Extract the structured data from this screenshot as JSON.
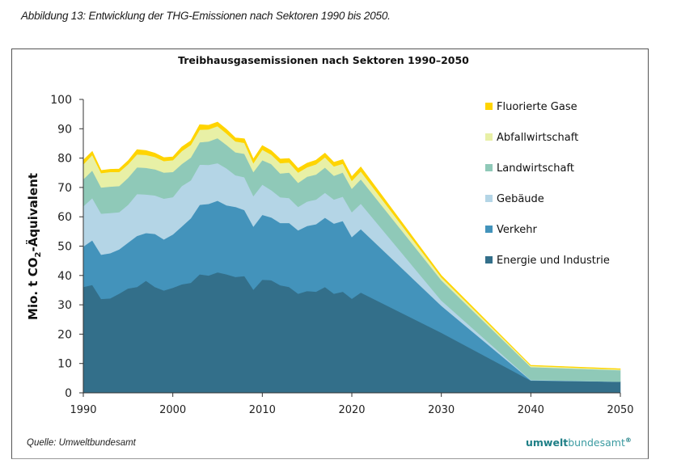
{
  "caption": "Abbildung 13:   Entwicklung der THG-Emissionen nach Sektoren 1990 bis 2050.",
  "source": "Quelle: Umweltbundesamt",
  "logo": {
    "bold": "umwelt",
    "light": "bundesamt",
    "mark": "®"
  },
  "chart_data": {
    "type": "area",
    "stacked": true,
    "title": "Treibhausgasemissionen nach Sektoren 1990–2050",
    "xlabel": "",
    "ylabel_parts": {
      "pre": "Mio. t CO",
      "sub": "2",
      "post": "-Äquivalent"
    },
    "ylim": [
      0,
      100
    ],
    "xlim": [
      1990,
      2050
    ],
    "yticks": [
      0,
      10,
      20,
      30,
      40,
      50,
      60,
      70,
      80,
      90,
      100
    ],
    "xticks": [
      1990,
      2000,
      2010,
      2020,
      2030,
      2040,
      2050
    ],
    "legend_position": "right",
    "x": [
      1990,
      1991,
      1992,
      1993,
      1994,
      1995,
      1996,
      1997,
      1998,
      1999,
      2000,
      2001,
      2002,
      2003,
      2004,
      2005,
      2006,
      2007,
      2008,
      2009,
      2010,
      2011,
      2012,
      2013,
      2014,
      2015,
      2016,
      2017,
      2018,
      2019,
      2020,
      2021,
      2030,
      2040,
      2050
    ],
    "series": [
      {
        "name": "Energie und Industrie",
        "color": "#336f8a",
        "values": [
          36.1,
          36.8,
          32.0,
          32.2,
          33.8,
          35.6,
          36.1,
          38.2,
          36.1,
          34.9,
          35.8,
          37.0,
          37.5,
          40.4,
          40.0,
          41.1,
          40.4,
          39.5,
          39.8,
          35.2,
          38.6,
          38.4,
          36.7,
          36.1,
          33.8,
          34.7,
          34.5,
          36.1,
          33.8,
          34.5,
          32.1,
          34.2,
          20.5,
          4.2,
          3.8
        ]
      },
      {
        "name": "Verkehr",
        "color": "#4393bb",
        "values": [
          13.8,
          15.2,
          15.1,
          15.4,
          15.1,
          15.6,
          17.4,
          16.3,
          18.1,
          17.4,
          18.2,
          19.7,
          22.0,
          23.7,
          24.4,
          24.4,
          23.5,
          23.9,
          22.5,
          21.5,
          22.1,
          21.4,
          21.2,
          21.8,
          21.6,
          22.2,
          23.0,
          23.6,
          23.9,
          24.1,
          21.0,
          21.6,
          9.2,
          0.1,
          0.0
        ]
      },
      {
        "name": "Gebäude",
        "color": "#b4d5e6",
        "values": [
          13.7,
          14.4,
          14.0,
          13.7,
          12.7,
          12.9,
          14.3,
          13.1,
          13.1,
          13.9,
          12.7,
          13.8,
          12.9,
          13.7,
          13.3,
          12.8,
          12.6,
          10.8,
          11.2,
          10.4,
          10.3,
          9.3,
          8.8,
          8.5,
          8.0,
          8.3,
          8.4,
          8.5,
          8.2,
          8.3,
          8.5,
          8.7,
          1.8,
          0.1,
          0.0
        ]
      },
      {
        "name": "Landwirtschaft",
        "color": "#8fc9b8",
        "values": [
          9.2,
          9.4,
          8.9,
          9.0,
          8.9,
          9.2,
          9.1,
          9.1,
          8.9,
          8.9,
          8.6,
          7.5,
          7.8,
          7.6,
          8.0,
          8.5,
          8.0,
          7.8,
          8.0,
          8.2,
          8.3,
          8.9,
          8.1,
          8.7,
          8.2,
          8.5,
          8.5,
          8.6,
          8.1,
          8.2,
          8.0,
          8.3,
          6.9,
          4.4,
          3.9
        ]
      },
      {
        "name": "Abfallwirtschaft",
        "color": "#e8f0a6",
        "values": [
          5.1,
          5.3,
          4.9,
          5.0,
          4.8,
          4.6,
          4.4,
          4.4,
          4.2,
          3.9,
          4.0,
          4.4,
          4.3,
          4.3,
          4.1,
          4.1,
          3.9,
          3.7,
          3.7,
          3.0,
          3.6,
          3.2,
          3.5,
          3.4,
          3.5,
          3.2,
          3.5,
          3.5,
          3.2,
          3.0,
          2.7,
          2.7,
          1.0,
          0.4,
          0.3
        ]
      },
      {
        "name": "Fluorierte Gase",
        "color": "#ffd400",
        "values": [
          1.4,
          1.2,
          0.9,
          0.9,
          1.0,
          1.2,
          1.6,
          1.5,
          1.3,
          1.2,
          1.1,
          1.4,
          1.4,
          1.7,
          1.4,
          1.4,
          1.4,
          1.2,
          1.4,
          1.4,
          1.4,
          1.4,
          1.4,
          1.4,
          1.4,
          1.4,
          1.4,
          1.4,
          1.4,
          1.4,
          1.4,
          1.5,
          0.6,
          0.2,
          0.2
        ]
      }
    ]
  }
}
